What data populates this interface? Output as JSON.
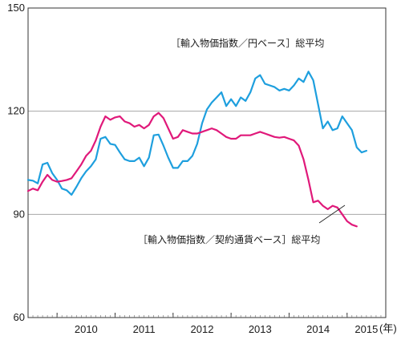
{
  "chart_data": {
    "type": "line",
    "title": "",
    "xlabel": "",
    "ylabel": "",
    "x_unit_label": "(年)",
    "ylim": [
      60,
      150
    ],
    "y_ticks": [
      "150",
      "120",
      "90",
      "60"
    ],
    "x_year_labels": [
      "2010",
      "2011",
      "2012",
      "2013",
      "2014",
      "2015"
    ],
    "x_start": "2009-07",
    "x_end": "2015-09",
    "grid": "horizontal",
    "series": [
      {
        "name": "［輸入物価指数／円ベース］総平均",
        "color": "#1e9fde",
        "values": [
          100.0,
          99.8,
          99.0,
          104.5,
          105.0,
          102.0,
          100.0,
          97.5,
          97.0,
          95.7,
          98.0,
          100.5,
          102.5,
          104.0,
          106.0,
          112.0,
          112.5,
          110.5,
          110.2,
          108.0,
          106.0,
          105.5,
          105.5,
          106.5,
          104.0,
          106.5,
          113.0,
          113.2,
          110.0,
          106.5,
          103.5,
          103.5,
          105.5,
          105.5,
          107.0,
          110.5,
          116.5,
          120.5,
          122.5,
          124.0,
          125.5,
          121.5,
          123.5,
          121.5,
          124.0,
          123.0,
          125.5,
          129.5,
          130.5,
          128.0,
          127.5,
          127.0,
          126.0,
          126.5,
          126.0,
          127.5,
          129.5,
          128.5,
          131.5,
          129.0,
          122.0,
          115.0,
          117.0,
          114.5,
          115.0,
          118.5,
          116.5,
          114.5,
          109.5,
          108.0,
          108.5
        ]
      },
      {
        "name": "［輸入物価指数／契約通貨ベース］総平均",
        "color": "#e0197a",
        "values": [
          96.8,
          97.5,
          97.0,
          99.5,
          101.5,
          100.0,
          99.5,
          99.7,
          100.0,
          100.5,
          102.5,
          104.5,
          107.0,
          108.5,
          111.5,
          115.5,
          118.5,
          117.5,
          118.2,
          118.5,
          117.0,
          116.5,
          115.5,
          116.0,
          115.0,
          116.0,
          118.5,
          119.5,
          118.0,
          115.0,
          112.0,
          112.5,
          114.5,
          114.0,
          113.5,
          113.5,
          114.0,
          114.5,
          115.0,
          114.5,
          113.5,
          112.5,
          112.0,
          112.0,
          113.0,
          113.0,
          113.0,
          113.5,
          114.0,
          113.5,
          113.0,
          112.5,
          112.3,
          112.5,
          112.0,
          111.5,
          110.0,
          106.0,
          100.0,
          93.5,
          94.0,
          92.5,
          91.5,
          92.5,
          92.0,
          90.0,
          88.0,
          87.0,
          86.5
        ]
      }
    ]
  }
}
